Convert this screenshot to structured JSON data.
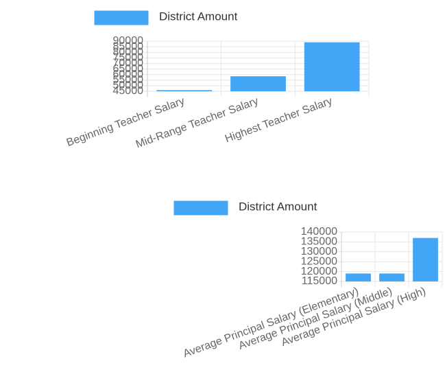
{
  "chart_data": [
    {
      "type": "bar",
      "categories": [
        "Beginning Teacher Salary",
        "Mid-Range Teacher Salary",
        "Highest Teacher Salary"
      ],
      "series": [
        {
          "name": "District Amount",
          "color": "#42a5f5",
          "values": [
            46000,
            58500,
            89000
          ]
        }
      ],
      "ylim": [
        45000,
        90000
      ],
      "yticks": [
        45000,
        50000,
        55000,
        60000,
        65000,
        70000,
        75000,
        80000,
        85000,
        90000
      ],
      "grid": true,
      "legend": "top"
    },
    {
      "type": "bar",
      "categories": [
        "Average Principal Salary (Elementary)",
        "Average Principal Salary (Middle)",
        "Average Principal Salary (High)"
      ],
      "series": [
        {
          "name": "District Amount",
          "color": "#42a5f5",
          "values": [
            119000,
            119000,
            137000
          ]
        }
      ],
      "ylim": [
        115000,
        140000
      ],
      "yticks": [
        115000,
        120000,
        125000,
        130000,
        135000,
        140000
      ],
      "grid": true,
      "legend": "top"
    }
  ]
}
